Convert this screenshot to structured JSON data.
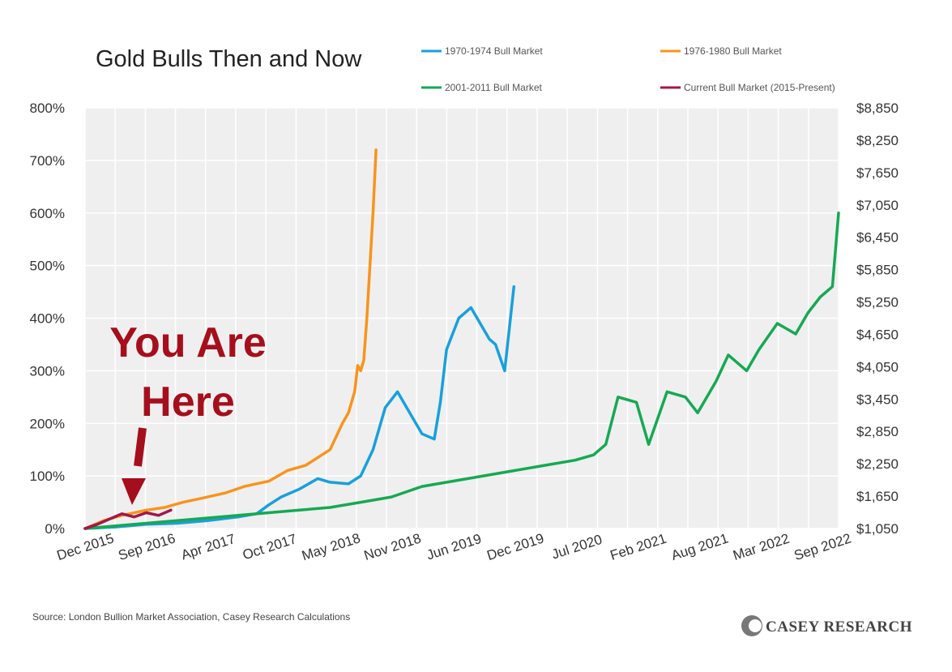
{
  "chart_data": {
    "type": "line",
    "title": "Gold Bulls Then and Now",
    "xlabel": "",
    "ylabel_left": "",
    "ylabel_right": "",
    "x_tick_labels": [
      "Dec 2015",
      "Sep 2016",
      "Apr 2017",
      "Oct 2017",
      "May 2018",
      "Nov 2018",
      "Jun 2019",
      "Dec 2019",
      "Jul 2020",
      "Feb 2021",
      "Aug 2021",
      "Mar 2022",
      "Sep 2022"
    ],
    "xlim": [
      0,
      12.3
    ],
    "ylim": [
      0,
      800
    ],
    "y_left_ticks": [
      0,
      100,
      200,
      300,
      400,
      500,
      600,
      700,
      800
    ],
    "y_left_tick_labels": [
      "0%",
      "100%",
      "200%",
      "300%",
      "400%",
      "500%",
      "600%",
      "700%",
      "800%"
    ],
    "y_right_ticks": [
      1050,
      1650,
      2250,
      2850,
      3450,
      4050,
      4650,
      5250,
      5850,
      6450,
      7050,
      7650,
      8250,
      8850
    ],
    "y_right_tick_labels": [
      "$1,050",
      "$1,650",
      "$2,250",
      "$2,850",
      "$3,450",
      "$4,050",
      "$4,650",
      "$5,250",
      "$5,850",
      "$6,450",
      "$7,050",
      "$7,650",
      "$8,250",
      "$8,850"
    ],
    "y_right_range": [
      1050,
      8850
    ],
    "grid": true,
    "legend_position": "top-right",
    "series": [
      {
        "name": "1970-1974 Bull Market",
        "color": "#1aa0d8",
        "x": [
          0,
          0.5,
          1,
          1.5,
          2,
          2.5,
          2.8,
          3,
          3.2,
          3.5,
          3.8,
          4,
          4.3,
          4.5,
          4.7,
          4.9,
          5.1,
          5.3,
          5.5,
          5.7,
          5.8,
          5.9,
          6.1,
          6.3,
          6.5,
          6.6,
          6.7,
          6.85,
          7.0
        ],
        "values": [
          0,
          3,
          8,
          10,
          15,
          22,
          28,
          45,
          60,
          75,
          95,
          88,
          85,
          100,
          150,
          230,
          260,
          220,
          180,
          170,
          240,
          340,
          400,
          420,
          380,
          360,
          350,
          300,
          460
        ]
      },
      {
        "name": "1976-1980 Bull Market",
        "color": "#f7941d",
        "x": [
          0,
          0.3,
          0.6,
          1,
          1.3,
          1.6,
          2,
          2.3,
          2.6,
          3,
          3.3,
          3.6,
          4,
          4.2,
          4.3,
          4.4,
          4.45,
          4.5,
          4.55,
          4.6,
          4.65,
          4.7,
          4.75
        ],
        "values": [
          0,
          15,
          25,
          35,
          40,
          50,
          60,
          68,
          80,
          90,
          110,
          120,
          150,
          200,
          220,
          260,
          310,
          300,
          320,
          400,
          500,
          600,
          720
        ]
      },
      {
        "name": "2001-2011 Bull Market",
        "color": "#17a854",
        "x": [
          0,
          0.5,
          1,
          1.5,
          2,
          2.5,
          3,
          3.5,
          4,
          4.5,
          5,
          5.5,
          6,
          6.5,
          7,
          7.5,
          8,
          8.3,
          8.5,
          8.7,
          9,
          9.2,
          9.5,
          9.8,
          10,
          10.3,
          10.5,
          10.8,
          11,
          11.3,
          11.6,
          11.8,
          12,
          12.2,
          12.3
        ],
        "values": [
          0,
          5,
          10,
          15,
          20,
          25,
          30,
          35,
          40,
          50,
          60,
          80,
          90,
          100,
          110,
          120,
          130,
          140,
          160,
          250,
          240,
          160,
          260,
          250,
          220,
          280,
          330,
          300,
          340,
          390,
          370,
          410,
          440,
          460,
          600
        ]
      },
      {
        "name": "Current Bull Market (2015-Present)",
        "color": "#a3174a",
        "x": [
          0,
          0.2,
          0.4,
          0.6,
          0.8,
          1.0,
          1.2,
          1.4
        ],
        "values": [
          0,
          8,
          18,
          28,
          22,
          30,
          25,
          35
        ]
      }
    ],
    "annotation": {
      "line1": "You Are",
      "line2": "Here",
      "color": "#a50f1d"
    },
    "source": "Source: London Bullion Market Association, Casey Research Calculations",
    "brand": "CASEY RESEARCH"
  }
}
